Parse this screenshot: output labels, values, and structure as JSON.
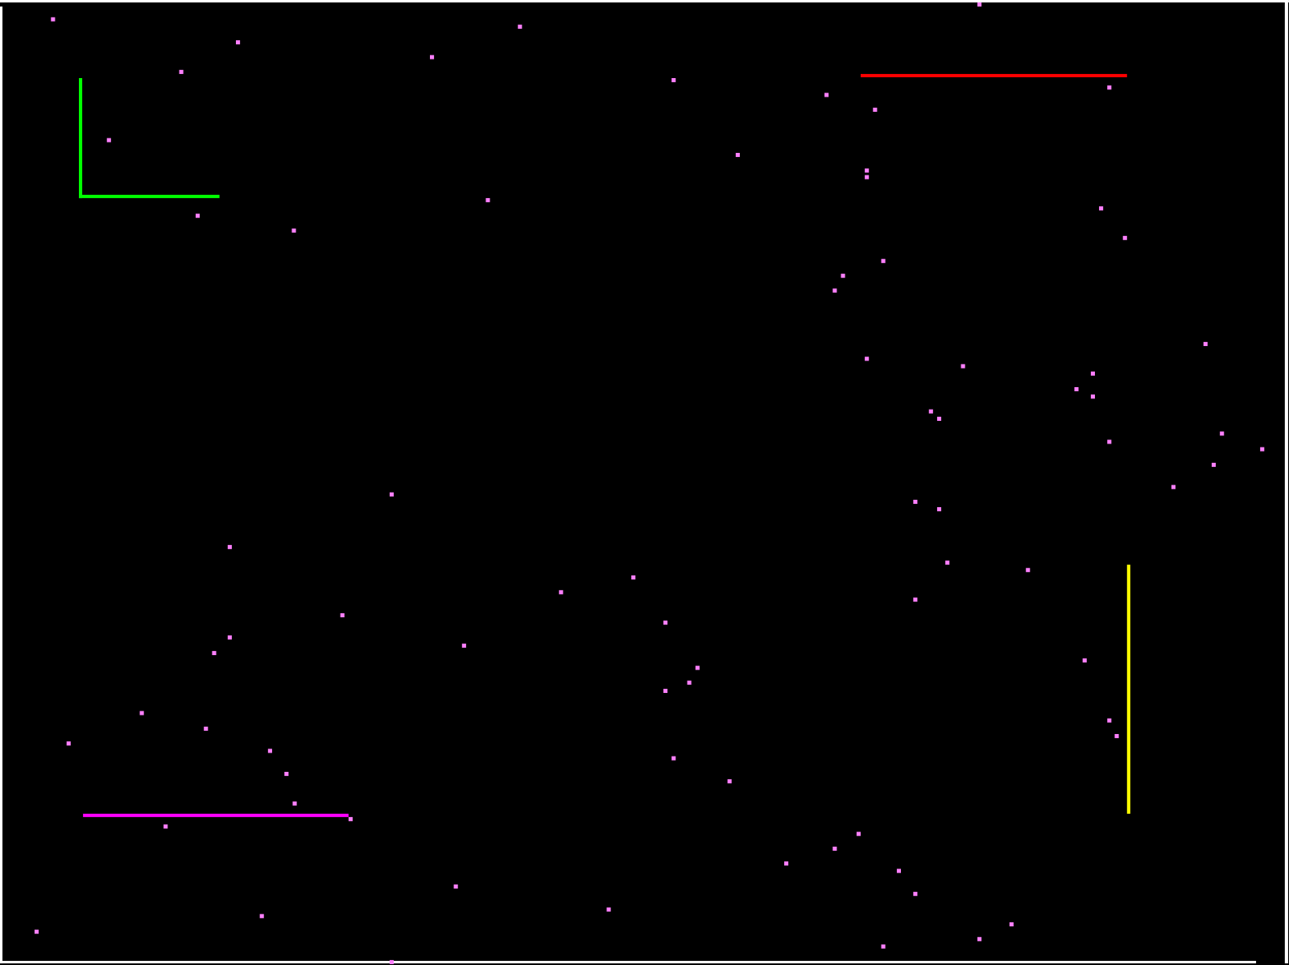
{
  "colors": {
    "background": "#000000",
    "border": "#ffffff",
    "particle": "#ff80ff",
    "green_wall": "#00ff00",
    "red_wall": "#ff0000",
    "yellow_wall": "#ffff00",
    "magenta_wall": "#ff00ff"
  }
}
